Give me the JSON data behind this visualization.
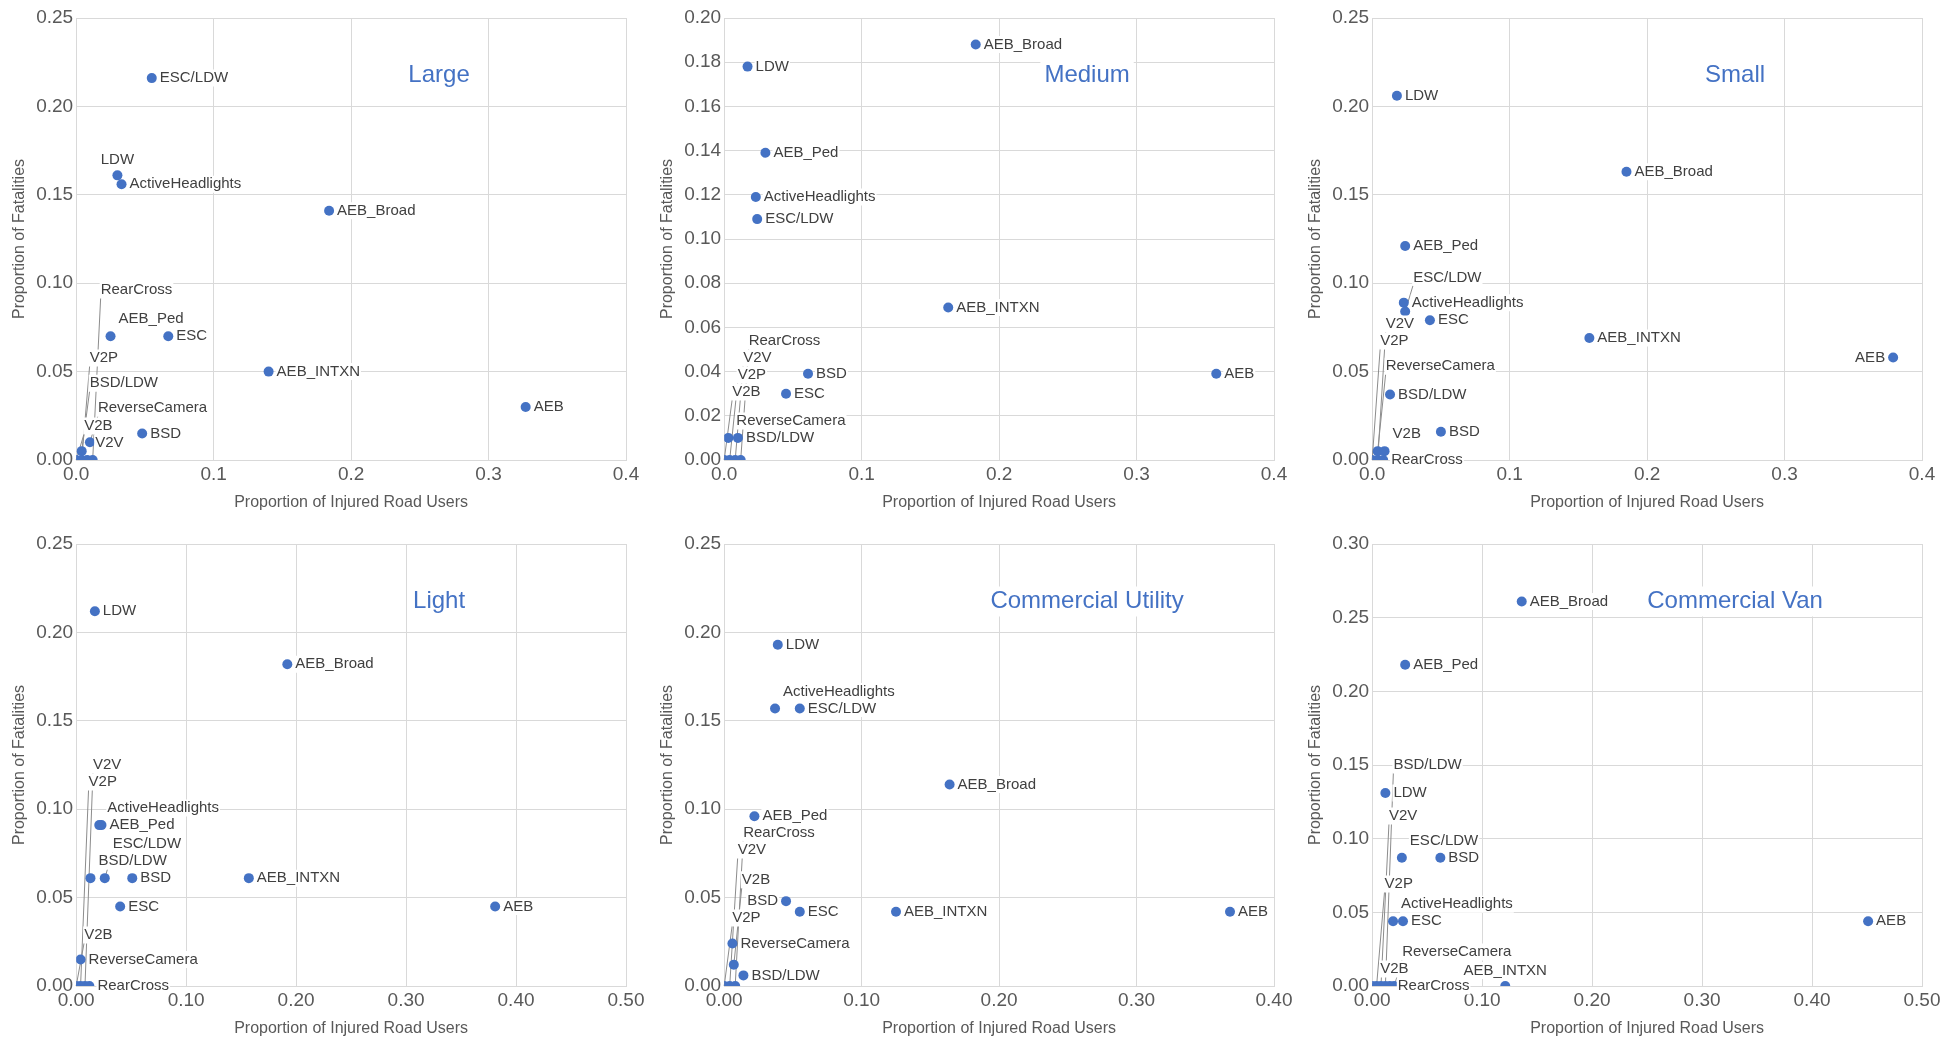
{
  "chart_data": [
    {
      "type": "scatter",
      "title": "Large",
      "xlabel": "Proportion of Injured Road Users",
      "ylabel": "Proportion of Fatalities",
      "color": "#4472c4",
      "marker": "circle",
      "grid": true,
      "x": [
        0.055,
        0.03,
        0.033,
        0.184,
        0.025,
        0.067,
        0.14,
        0.327,
        0.048,
        0.01,
        0.004,
        0.0,
        0.004,
        0.008,
        0.012
      ],
      "values": [
        0.216,
        0.161,
        0.156,
        0.141,
        0.07,
        0.07,
        0.05,
        0.03,
        0.015,
        0.01,
        0.005,
        0.0,
        0.0,
        0.0,
        0.0
      ],
      "xlim": [
        0,
        0.4
      ],
      "ylim": [
        0,
        0.25
      ],
      "xticks": [
        {
          "value": 0,
          "label": "0.0"
        },
        {
          "value": 0.1,
          "label": "0.1"
        },
        {
          "value": 0.2,
          "label": "0.2"
        },
        {
          "value": 0.3,
          "label": "0.3"
        },
        {
          "value": 0.4,
          "label": "0.4"
        }
      ],
      "yticks": [
        {
          "value": 0,
          "label": "0.00"
        },
        {
          "value": 0.05,
          "label": "0.05"
        },
        {
          "value": 0.1,
          "label": "0.10"
        },
        {
          "value": 0.15,
          "label": "0.15"
        },
        {
          "value": 0.2,
          "label": "0.20"
        },
        {
          "value": 0.25,
          "label": "0.25"
        }
      ],
      "annotations": [
        {
          "text": "ESC/LDW",
          "x": 0.055,
          "y": 0.216
        },
        {
          "text": "LDW",
          "x": 0.03,
          "y": 0.161
        },
        {
          "text": "ActiveHeadlights",
          "x": 0.033,
          "y": 0.156
        },
        {
          "text": "AEB_Broad",
          "x": 0.184,
          "y": 0.141
        },
        {
          "text": "AEB_Ped",
          "x": 0.025,
          "y": 0.07
        },
        {
          "text": "ESC",
          "x": 0.067,
          "y": 0.07
        },
        {
          "text": "AEB_INTXN",
          "x": 0.14,
          "y": 0.05
        },
        {
          "text": "AEB",
          "x": 0.327,
          "y": 0.03
        },
        {
          "text": "BSD",
          "x": 0.048,
          "y": 0.015
        },
        {
          "text": "ReverseCamera",
          "x": 0.01,
          "y": 0.01
        },
        {
          "text": "BSD/LDW",
          "x": 0.004,
          "y": 0.005
        },
        {
          "text": "V2B",
          "x": 0.0,
          "y": 0.0
        },
        {
          "text": "V2P",
          "x": 0.004,
          "y": 0.0
        },
        {
          "text": "V2V",
          "x": 0.008,
          "y": 0.0
        },
        {
          "text": "RearCross",
          "x": 0.012,
          "y": 0.0
        }
      ]
    },
    {
      "type": "scatter",
      "title": "Medium",
      "xlabel": "Proportion of Injured Road Users",
      "ylabel": "Proportion of Fatalities",
      "color": "#4472c4",
      "marker": "circle",
      "grid": true,
      "x": [
        0.183,
        0.017,
        0.03,
        0.023,
        0.024,
        0.163,
        0.061,
        0.045,
        0.358,
        0.003,
        0.01,
        0.0,
        0.004,
        0.008,
        0.012
      ],
      "values": [
        0.188,
        0.178,
        0.139,
        0.119,
        0.109,
        0.069,
        0.039,
        0.03,
        0.039,
        0.01,
        0.01,
        0.0,
        0.0,
        0.0,
        0.0
      ],
      "xlim": [
        0,
        0.4
      ],
      "ylim": [
        0,
        0.2
      ],
      "xticks": [
        {
          "value": 0,
          "label": "0.0"
        },
        {
          "value": 0.1,
          "label": "0.1"
        },
        {
          "value": 0.2,
          "label": "0.2"
        },
        {
          "value": 0.3,
          "label": "0.3"
        },
        {
          "value": 0.4,
          "label": "0.4"
        }
      ],
      "yticks": [
        {
          "value": 0,
          "label": "0.00"
        },
        {
          "value": 0.02,
          "label": "0.02"
        },
        {
          "value": 0.04,
          "label": "0.04"
        },
        {
          "value": 0.06,
          "label": "0.06"
        },
        {
          "value": 0.08,
          "label": "0.08"
        },
        {
          "value": 0.1,
          "label": "0.10"
        },
        {
          "value": 0.12,
          "label": "0.12"
        },
        {
          "value": 0.14,
          "label": "0.14"
        },
        {
          "value": 0.16,
          "label": "0.16"
        },
        {
          "value": 0.18,
          "label": "0.18"
        },
        {
          "value": 0.2,
          "label": "0.20"
        }
      ],
      "annotations": [
        {
          "text": "AEB_Broad",
          "x": 0.183,
          "y": 0.188
        },
        {
          "text": "LDW",
          "x": 0.017,
          "y": 0.178
        },
        {
          "text": "AEB_Ped",
          "x": 0.03,
          "y": 0.139
        },
        {
          "text": "ActiveHeadlights",
          "x": 0.023,
          "y": 0.119
        },
        {
          "text": "ESC/LDW",
          "x": 0.024,
          "y": 0.109
        },
        {
          "text": "AEB_INTXN",
          "x": 0.163,
          "y": 0.069
        },
        {
          "text": "BSD",
          "x": 0.061,
          "y": 0.039
        },
        {
          "text": "ESC",
          "x": 0.045,
          "y": 0.03
        },
        {
          "text": "AEB",
          "x": 0.358,
          "y": 0.039
        },
        {
          "text": "ReverseCamera",
          "x": 0.003,
          "y": 0.01
        },
        {
          "text": "BSD/LDW",
          "x": 0.01,
          "y": 0.01
        },
        {
          "text": "V2B",
          "x": 0.0,
          "y": 0.0
        },
        {
          "text": "V2P",
          "x": 0.004,
          "y": 0.0
        },
        {
          "text": "V2V",
          "x": 0.008,
          "y": 0.0
        },
        {
          "text": "RearCross",
          "x": 0.012,
          "y": 0.0
        }
      ]
    },
    {
      "type": "scatter",
      "title": "Small",
      "xlabel": "Proportion of Injured Road Users",
      "ylabel": "Proportion of Fatalities",
      "color": "#4472c4",
      "marker": "circle",
      "grid": true,
      "x": [
        0.018,
        0.185,
        0.024,
        0.023,
        0.024,
        0.042,
        0.158,
        0.379,
        0.013,
        0.05,
        0.004,
        0.009,
        0.0,
        0.004,
        0.008
      ],
      "values": [
        0.206,
        0.163,
        0.121,
        0.089,
        0.084,
        0.079,
        0.069,
        0.058,
        0.037,
        0.016,
        0.005,
        0.005,
        0.0,
        0.0,
        0.0
      ],
      "xlim": [
        0,
        0.4
      ],
      "ylim": [
        0,
        0.25
      ],
      "xticks": [
        {
          "value": 0,
          "label": "0.0"
        },
        {
          "value": 0.1,
          "label": "0.1"
        },
        {
          "value": 0.2,
          "label": "0.2"
        },
        {
          "value": 0.3,
          "label": "0.3"
        },
        {
          "value": 0.4,
          "label": "0.4"
        }
      ],
      "yticks": [
        {
          "value": 0,
          "label": "0.00"
        },
        {
          "value": 0.05,
          "label": "0.05"
        },
        {
          "value": 0.1,
          "label": "0.10"
        },
        {
          "value": 0.15,
          "label": "0.15"
        },
        {
          "value": 0.2,
          "label": "0.20"
        },
        {
          "value": 0.25,
          "label": "0.25"
        }
      ],
      "annotations": [
        {
          "text": "LDW",
          "x": 0.018,
          "y": 0.206
        },
        {
          "text": "AEB_Broad",
          "x": 0.185,
          "y": 0.163
        },
        {
          "text": "AEB_Ped",
          "x": 0.024,
          "y": 0.121
        },
        {
          "text": "ActiveHeadlights",
          "x": 0.023,
          "y": 0.089
        },
        {
          "text": "ESC/LDW",
          "x": 0.024,
          "y": 0.084
        },
        {
          "text": "ESC",
          "x": 0.042,
          "y": 0.079
        },
        {
          "text": "AEB_INTXN",
          "x": 0.158,
          "y": 0.069
        },
        {
          "text": "AEB",
          "x": 0.379,
          "y": 0.058
        },
        {
          "text": "BSD/LDW",
          "x": 0.013,
          "y": 0.037
        },
        {
          "text": "BSD",
          "x": 0.05,
          "y": 0.016
        },
        {
          "text": "ReverseCamera",
          "x": 0.004,
          "y": 0.005
        },
        {
          "text": "V2B",
          "x": 0.009,
          "y": 0.005
        },
        {
          "text": "V2P",
          "x": 0.0,
          "y": 0.0
        },
        {
          "text": "V2V",
          "x": 0.004,
          "y": 0.0
        },
        {
          "text": "RearCross",
          "x": 0.008,
          "y": 0.0
        }
      ]
    },
    {
      "type": "scatter",
      "title": "Light",
      "xlabel": "Proportion of Injured Road Users",
      "ylabel": "Proportion of Fatalities",
      "color": "#4472c4",
      "marker": "circle",
      "grid": true,
      "x": [
        0.017,
        0.192,
        0.023,
        0.021,
        0.013,
        0.026,
        0.051,
        0.04,
        0.157,
        0.381,
        0.004,
        0.0,
        0.004,
        0.008,
        0.012
      ],
      "values": [
        0.212,
        0.182,
        0.091,
        0.091,
        0.061,
        0.061,
        0.061,
        0.045,
        0.061,
        0.045,
        0.015,
        0.0,
        0.0,
        0.0,
        0.0
      ],
      "xlim": [
        0,
        0.5
      ],
      "ylim": [
        0,
        0.25
      ],
      "xticks": [
        {
          "value": 0,
          "label": "0.00"
        },
        {
          "value": 0.1,
          "label": "0.10"
        },
        {
          "value": 0.2,
          "label": "0.20"
        },
        {
          "value": 0.3,
          "label": "0.30"
        },
        {
          "value": 0.4,
          "label": "0.40"
        },
        {
          "value": 0.5,
          "label": "0.50"
        }
      ],
      "yticks": [
        {
          "value": 0,
          "label": "0.00"
        },
        {
          "value": 0.05,
          "label": "0.05"
        },
        {
          "value": 0.1,
          "label": "0.10"
        },
        {
          "value": 0.15,
          "label": "0.15"
        },
        {
          "value": 0.2,
          "label": "0.20"
        },
        {
          "value": 0.25,
          "label": "0.25"
        }
      ],
      "annotations": [
        {
          "text": "LDW",
          "x": 0.017,
          "y": 0.212
        },
        {
          "text": "AEB_Broad",
          "x": 0.192,
          "y": 0.182
        },
        {
          "text": "AEB_Ped",
          "x": 0.023,
          "y": 0.091
        },
        {
          "text": "ActiveHeadlights",
          "x": 0.021,
          "y": 0.091
        },
        {
          "text": "BSD/LDW",
          "x": 0.013,
          "y": 0.061
        },
        {
          "text": "ESC/LDW",
          "x": 0.026,
          "y": 0.061
        },
        {
          "text": "BSD",
          "x": 0.051,
          "y": 0.061
        },
        {
          "text": "ESC",
          "x": 0.04,
          "y": 0.045
        },
        {
          "text": "AEB_INTXN",
          "x": 0.157,
          "y": 0.061
        },
        {
          "text": "AEB",
          "x": 0.381,
          "y": 0.045
        },
        {
          "text": "ReverseCamera",
          "x": 0.004,
          "y": 0.015
        },
        {
          "text": "V2B",
          "x": 0.0,
          "y": 0.0
        },
        {
          "text": "V2P",
          "x": 0.004,
          "y": 0.0
        },
        {
          "text": "V2V",
          "x": 0.008,
          "y": 0.0
        },
        {
          "text": "RearCross",
          "x": 0.012,
          "y": 0.0
        }
      ]
    },
    {
      "type": "scatter",
      "title": "Commercial Utility",
      "xlabel": "Proportion of Injured Road Users",
      "ylabel": "Proportion of Fatalities",
      "color": "#4472c4",
      "marker": "circle",
      "grid": true,
      "x": [
        0.039,
        0.037,
        0.055,
        0.164,
        0.022,
        0.045,
        0.055,
        0.125,
        0.368,
        0.006,
        0.007,
        0.014,
        0.0,
        0.004,
        0.008
      ],
      "values": [
        0.193,
        0.157,
        0.157,
        0.114,
        0.096,
        0.048,
        0.042,
        0.042,
        0.042,
        0.024,
        0.012,
        0.006,
        0.0,
        0.0,
        0.0
      ],
      "xlim": [
        0,
        0.4
      ],
      "ylim": [
        0,
        0.25
      ],
      "xticks": [
        {
          "value": 0,
          "label": "0.00"
        },
        {
          "value": 0.1,
          "label": "0.10"
        },
        {
          "value": 0.2,
          "label": "0.20"
        },
        {
          "value": 0.3,
          "label": "0.30"
        },
        {
          "value": 0.4,
          "label": "0.40"
        }
      ],
      "yticks": [
        {
          "value": 0,
          "label": "0.00"
        },
        {
          "value": 0.05,
          "label": "0.05"
        },
        {
          "value": 0.1,
          "label": "0.10"
        },
        {
          "value": 0.15,
          "label": "0.15"
        },
        {
          "value": 0.2,
          "label": "0.20"
        },
        {
          "value": 0.25,
          "label": "0.25"
        }
      ],
      "annotations": [
        {
          "text": "LDW",
          "x": 0.039,
          "y": 0.193
        },
        {
          "text": "ActiveHeadlights",
          "x": 0.037,
          "y": 0.157
        },
        {
          "text": "ESC/LDW",
          "x": 0.055,
          "y": 0.157
        },
        {
          "text": "AEB_Broad",
          "x": 0.164,
          "y": 0.114
        },
        {
          "text": "AEB_Ped",
          "x": 0.022,
          "y": 0.096
        },
        {
          "text": "BSD",
          "x": 0.045,
          "y": 0.048
        },
        {
          "text": "ESC",
          "x": 0.055,
          "y": 0.042
        },
        {
          "text": "AEB_INTXN",
          "x": 0.125,
          "y": 0.042
        },
        {
          "text": "AEB",
          "x": 0.368,
          "y": 0.042
        },
        {
          "text": "ReverseCamera",
          "x": 0.006,
          "y": 0.024
        },
        {
          "text": "V2B",
          "x": 0.007,
          "y": 0.012
        },
        {
          "text": "BSD/LDW",
          "x": 0.014,
          "y": 0.006
        },
        {
          "text": "V2P",
          "x": 0.0,
          "y": 0.0
        },
        {
          "text": "V2V",
          "x": 0.004,
          "y": 0.0
        },
        {
          "text": "RearCross",
          "x": 0.008,
          "y": 0.0
        }
      ]
    },
    {
      "type": "scatter",
      "title": "Commercial Van",
      "xlabel": "Proportion of Injured Road Users",
      "ylabel": "Proportion of Fatalities",
      "color": "#4472c4",
      "marker": "circle",
      "grid": true,
      "x": [
        0.136,
        0.03,
        0.012,
        0.027,
        0.062,
        0.019,
        0.028,
        0.451,
        0.121,
        0.02,
        0.0,
        0.004,
        0.008,
        0.012,
        0.016
      ],
      "values": [
        0.261,
        0.218,
        0.131,
        0.087,
        0.087,
        0.044,
        0.044,
        0.044,
        0.0,
        0.0,
        0.0,
        0.0,
        0.0,
        0.0,
        0.0
      ],
      "xlim": [
        0,
        0.5
      ],
      "ylim": [
        0,
        0.3
      ],
      "xticks": [
        {
          "value": 0,
          "label": "0.00"
        },
        {
          "value": 0.1,
          "label": "0.10"
        },
        {
          "value": 0.2,
          "label": "0.20"
        },
        {
          "value": 0.3,
          "label": "0.30"
        },
        {
          "value": 0.4,
          "label": "0.40"
        },
        {
          "value": 0.5,
          "label": "0.50"
        }
      ],
      "yticks": [
        {
          "value": 0,
          "label": "0.00"
        },
        {
          "value": 0.05,
          "label": "0.05"
        },
        {
          "value": 0.1,
          "label": "0.10"
        },
        {
          "value": 0.15,
          "label": "0.15"
        },
        {
          "value": 0.2,
          "label": "0.20"
        },
        {
          "value": 0.25,
          "label": "0.25"
        },
        {
          "value": 0.3,
          "label": "0.30"
        }
      ],
      "annotations": [
        {
          "text": "AEB_Broad",
          "x": 0.136,
          "y": 0.261
        },
        {
          "text": "AEB_Ped",
          "x": 0.03,
          "y": 0.218
        },
        {
          "text": "LDW",
          "x": 0.012,
          "y": 0.131
        },
        {
          "text": "ESC/LDW",
          "x": 0.027,
          "y": 0.087
        },
        {
          "text": "BSD",
          "x": 0.062,
          "y": 0.087
        },
        {
          "text": "ActiveHeadlights",
          "x": 0.019,
          "y": 0.044
        },
        {
          "text": "ESC",
          "x": 0.028,
          "y": 0.044
        },
        {
          "text": "AEB",
          "x": 0.451,
          "y": 0.044
        },
        {
          "text": "AEB_INTXN",
          "x": 0.121,
          "y": 0.0
        },
        {
          "text": "ReverseCamera",
          "x": 0.02,
          "y": 0.0
        },
        {
          "text": "V2B",
          "x": 0.0,
          "y": 0.0
        },
        {
          "text": "V2P",
          "x": 0.004,
          "y": 0.0
        },
        {
          "text": "V2V",
          "x": 0.008,
          "y": 0.0
        },
        {
          "text": "BSD/LDW",
          "x": 0.012,
          "y": 0.0
        },
        {
          "text": "RearCross",
          "x": 0.016,
          "y": 0.0
        }
      ]
    }
  ]
}
